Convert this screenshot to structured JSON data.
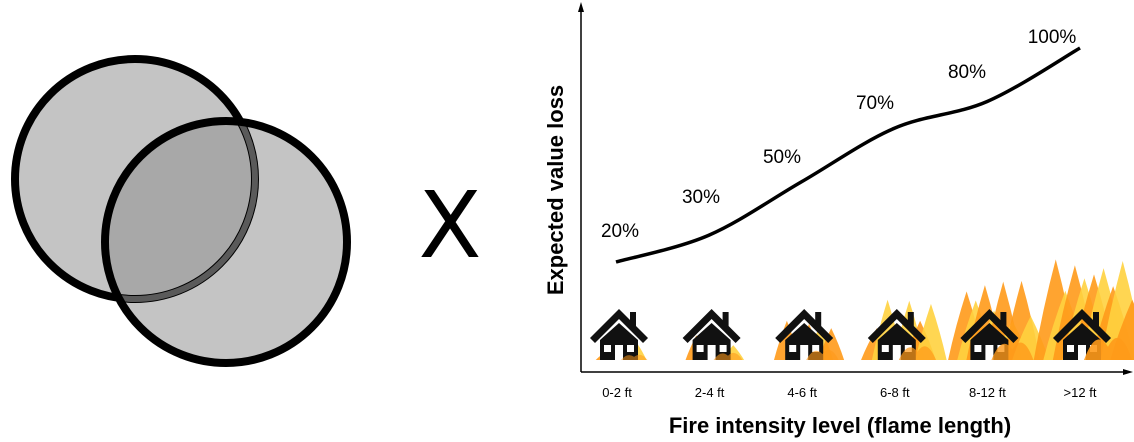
{
  "multiplier_symbol": "X",
  "colors": {
    "circle_fill": "#c4c4c4",
    "circle_overlap": "#a8a8a8",
    "stroke": "#000000",
    "line": "#000000",
    "flame_1": "#ff9a1a",
    "flame_2": "#ffd23f"
  },
  "icons": [
    "overlapping-circles-icon",
    "house-icon",
    "fire-icon"
  ],
  "chart_data": {
    "type": "line",
    "categories": [
      "0-2 ft",
      "2-4 ft",
      "4-6 ft",
      "6-8 ft",
      "8-12 ft",
      ">12 ft"
    ],
    "values": [
      20,
      30,
      50,
      70,
      80,
      100
    ],
    "data_labels": [
      "20%",
      "30%",
      "50%",
      "70%",
      "80%",
      "100%"
    ],
    "xlabel": "Fire intensity level (flame length)",
    "ylabel": "Expected value loss",
    "ylim": [
      0,
      100
    ],
    "grid": false,
    "house_fire_levels": [
      0.1,
      0.2,
      0.35,
      0.55,
      0.75,
      1.0
    ]
  }
}
